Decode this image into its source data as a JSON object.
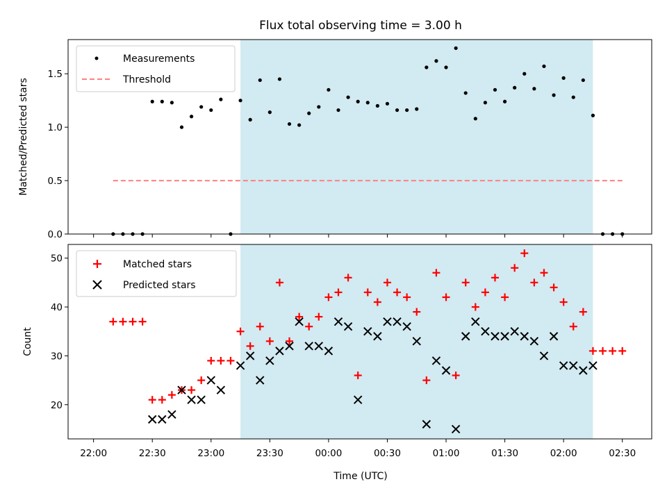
{
  "chart_data": [
    {
      "type": "scatter",
      "title": "Flux total observing time = 3.00 h",
      "xlabel": "",
      "ylabel": "Matched/Predicted stars",
      "ylim": [
        0,
        1.82
      ],
      "yticks": [
        "0.0",
        "0.5",
        "1.0",
        "1.5"
      ],
      "ytick_values": [
        0,
        0.5,
        1.0,
        1.5
      ],
      "threshold": {
        "name": "Threshold",
        "value": 0.5,
        "x_start": 10,
        "x_end": 270,
        "color": "#ff7f7f"
      },
      "highlight_span": {
        "x_start": 75,
        "x_end": 255,
        "color": "#add8e6"
      },
      "legend": {
        "placement": "upper left",
        "entries": [
          "Measurements",
          "Threshold"
        ]
      },
      "series": [
        {
          "name": "Measurements",
          "marker": "dot",
          "color": "#000000",
          "x": [
            10,
            15,
            20,
            25,
            30,
            35,
            40,
            45,
            50,
            55,
            60,
            65,
            70,
            75,
            80,
            85,
            90,
            95,
            100,
            105,
            110,
            115,
            120,
            125,
            130,
            135,
            140,
            145,
            150,
            155,
            160,
            165,
            170,
            175,
            180,
            185,
            190,
            195,
            200,
            205,
            210,
            215,
            220,
            225,
            230,
            235,
            240,
            245,
            250,
            255,
            260,
            265,
            270
          ],
          "y": [
            0,
            0,
            0,
            0,
            1.24,
            1.24,
            1.23,
            1.0,
            1.1,
            1.19,
            1.16,
            1.26,
            0,
            1.25,
            1.07,
            1.44,
            1.14,
            1.45,
            1.03,
            1.02,
            1.13,
            1.19,
            1.35,
            1.16,
            1.28,
            1.24,
            1.23,
            1.2,
            1.22,
            1.16,
            1.16,
            1.17,
            1.56,
            1.62,
            1.56,
            1.74,
            1.32,
            1.08,
            1.23,
            1.35,
            1.24,
            1.37,
            1.5,
            1.36,
            1.57,
            1.3,
            1.46,
            1.28,
            1.44,
            1.11,
            0,
            0,
            0
          ]
        }
      ]
    },
    {
      "type": "scatter",
      "title": "",
      "xlabel": "Time (UTC)",
      "ylabel": "Count",
      "ylim": [
        13,
        52.8
      ],
      "yticks": [
        "20",
        "30",
        "40",
        "50"
      ],
      "ytick_values": [
        20,
        30,
        40,
        50
      ],
      "xlim": [
        -13,
        285
      ],
      "xticks": [
        "22:00",
        "22:30",
        "23:00",
        "23:30",
        "00:00",
        "00:30",
        "01:00",
        "01:30",
        "02:00",
        "02:30"
      ],
      "xtick_values": [
        0,
        30,
        60,
        90,
        120,
        150,
        180,
        210,
        240,
        270
      ],
      "highlight_span": {
        "x_start": 75,
        "x_end": 255,
        "color": "#add8e6"
      },
      "legend": {
        "placement": "upper left",
        "entries": [
          "Matched stars",
          "Predicted stars"
        ]
      },
      "series": [
        {
          "name": "Matched stars",
          "marker": "plus",
          "color": "#ff0000",
          "x": [
            10,
            15,
            20,
            25,
            30,
            35,
            40,
            45,
            50,
            55,
            60,
            65,
            70,
            75,
            80,
            85,
            90,
            95,
            100,
            105,
            110,
            115,
            120,
            125,
            130,
            135,
            140,
            145,
            150,
            155,
            160,
            165,
            170,
            175,
            180,
            185,
            190,
            195,
            200,
            205,
            210,
            215,
            220,
            225,
            230,
            235,
            240,
            245,
            250,
            255,
            260,
            265,
            270
          ],
          "y": [
            37,
            37,
            37,
            37,
            21,
            21,
            22,
            23,
            23,
            25,
            29,
            29,
            29,
            35,
            32,
            36,
            33,
            45,
            33,
            38,
            36,
            38,
            42,
            43,
            46,
            26,
            43,
            41,
            45,
            43,
            42,
            39,
            25,
            47,
            42,
            26,
            45,
            40,
            43,
            46,
            42,
            48,
            51,
            45,
            47,
            44,
            41,
            36,
            39,
            31,
            31,
            31,
            31
          ]
        },
        {
          "name": "Predicted stars",
          "marker": "x",
          "color": "#000000",
          "x": [
            30,
            35,
            40,
            45,
            50,
            55,
            60,
            65,
            75,
            80,
            85,
            90,
            95,
            100,
            105,
            110,
            115,
            120,
            125,
            130,
            135,
            140,
            145,
            150,
            155,
            160,
            165,
            170,
            175,
            180,
            185,
            190,
            195,
            200,
            205,
            210,
            215,
            220,
            225,
            230,
            235,
            240,
            245,
            250,
            255
          ],
          "y": [
            17,
            17,
            18,
            23,
            21,
            21,
            25,
            23,
            28,
            30,
            25,
            29,
            31,
            32,
            37,
            32,
            32,
            31,
            37,
            36,
            21,
            35,
            34,
            37,
            37,
            36,
            33,
            16,
            29,
            27,
            15,
            34,
            37,
            35,
            34,
            34,
            35,
            34,
            33,
            30,
            34,
            28,
            28,
            27,
            28
          ]
        }
      ]
    }
  ]
}
